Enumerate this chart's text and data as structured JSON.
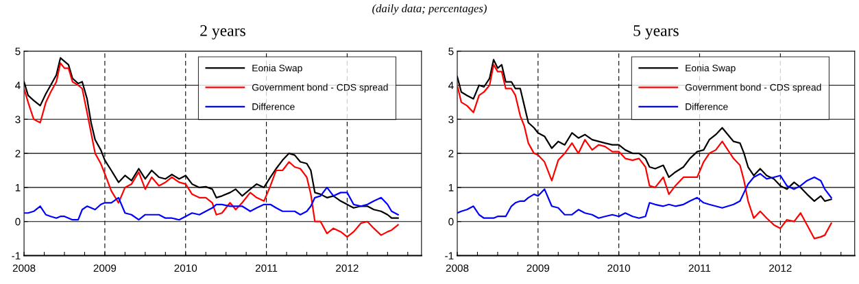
{
  "chart_data": [
    {
      "type": "line",
      "title": "2 years",
      "annotations": [
        "(daily data; percentages)"
      ],
      "x": [
        2008.0,
        2008.05,
        2008.12,
        2008.2,
        2008.27,
        2008.33,
        2008.4,
        2008.45,
        2008.5,
        2008.55,
        2008.6,
        2008.67,
        2008.72,
        2008.78,
        2008.83,
        2008.88,
        2008.95,
        2009.0,
        2009.08,
        2009.17,
        2009.25,
        2009.33,
        2009.42,
        2009.5,
        2009.58,
        2009.67,
        2009.75,
        2009.83,
        2009.92,
        2010.0,
        2010.08,
        2010.17,
        2010.25,
        2010.33,
        2010.38,
        2010.45,
        2010.55,
        2010.62,
        2010.7,
        2010.8,
        2010.88,
        2010.97,
        2011.05,
        2011.12,
        2011.2,
        2011.28,
        2011.35,
        2011.42,
        2011.5,
        2011.55,
        2011.6,
        2011.67,
        2011.75,
        2011.83,
        2011.92,
        2012.0,
        2012.08,
        2012.17,
        2012.25,
        2012.33,
        2012.42,
        2012.5,
        2012.55,
        2012.63
      ],
      "series": [
        {
          "name": "Eonia Swap",
          "color": "#000000",
          "values": [
            4.1,
            3.7,
            3.55,
            3.4,
            3.75,
            4.0,
            4.3,
            4.8,
            4.7,
            4.6,
            4.2,
            4.05,
            4.1,
            3.6,
            2.9,
            2.4,
            2.1,
            1.8,
            1.5,
            1.15,
            1.35,
            1.2,
            1.55,
            1.25,
            1.5,
            1.3,
            1.25,
            1.38,
            1.25,
            1.35,
            1.1,
            1.0,
            1.02,
            0.95,
            0.7,
            0.75,
            0.85,
            0.95,
            0.75,
            0.95,
            1.1,
            1.0,
            1.3,
            1.55,
            1.8,
            2.0,
            1.95,
            1.75,
            1.7,
            1.5,
            0.85,
            0.8,
            0.7,
            0.75,
            0.6,
            0.5,
            0.4,
            0.45,
            0.45,
            0.35,
            0.3,
            0.2,
            0.1,
            0.1
          ]
        },
        {
          "name": "Government bond - CDS spread",
          "color": "#ff0000",
          "values": [
            3.9,
            3.5,
            3.0,
            2.9,
            3.5,
            3.8,
            4.1,
            4.65,
            4.5,
            4.5,
            4.1,
            4.0,
            3.9,
            3.2,
            2.6,
            2.0,
            1.7,
            1.4,
            0.9,
            0.55,
            1.0,
            1.1,
            1.45,
            0.95,
            1.3,
            1.05,
            1.15,
            1.3,
            1.15,
            1.1,
            0.8,
            0.7,
            0.7,
            0.55,
            0.2,
            0.25,
            0.55,
            0.35,
            0.55,
            0.85,
            0.7,
            0.6,
            1.05,
            1.5,
            1.5,
            1.75,
            1.6,
            1.55,
            1.3,
            0.8,
            0.0,
            0.0,
            -0.35,
            -0.2,
            -0.3,
            -0.45,
            -0.3,
            -0.05,
            0.0,
            -0.2,
            -0.4,
            -0.3,
            -0.25,
            -0.1
          ]
        },
        {
          "name": "Difference",
          "color": "#0000ff",
          "values": [
            0.25,
            0.25,
            0.3,
            0.45,
            0.2,
            0.15,
            0.1,
            0.15,
            0.15,
            0.1,
            0.05,
            0.05,
            0.35,
            0.45,
            0.4,
            0.35,
            0.5,
            0.55,
            0.55,
            0.7,
            0.25,
            0.2,
            0.05,
            0.2,
            0.2,
            0.2,
            0.1,
            0.1,
            0.05,
            0.15,
            0.25,
            0.2,
            0.3,
            0.4,
            0.5,
            0.5,
            0.45,
            0.45,
            0.45,
            0.3,
            0.4,
            0.5,
            0.5,
            0.4,
            0.3,
            0.3,
            0.3,
            0.2,
            0.3,
            0.45,
            0.7,
            0.75,
            1.0,
            0.75,
            0.85,
            0.85,
            0.5,
            0.45,
            0.5,
            0.6,
            0.7,
            0.5,
            0.3,
            0.2
          ]
        }
      ],
      "xlim": [
        2008,
        2012.92
      ],
      "xticks": [
        2008,
        {
          "value": 2008.25,
          "label": null
        },
        {
          "value": 2008.5,
          "label": null
        },
        {
          "value": 2008.75,
          "label": null
        },
        2009,
        {
          "value": 2009.25,
          "label": null
        },
        {
          "value": 2009.5,
          "label": null
        },
        {
          "value": 2009.75,
          "label": null
        },
        2010,
        {
          "value": 2010.25,
          "label": null
        },
        {
          "value": 2010.5,
          "label": null
        },
        {
          "value": 2010.75,
          "label": null
        },
        2011,
        {
          "value": 2011.25,
          "label": null
        },
        {
          "value": 2011.5,
          "label": null
        },
        {
          "value": 2011.75,
          "label": null
        },
        2012,
        {
          "value": 2012.25,
          "label": null
        },
        {
          "value": 2012.5,
          "label": null
        },
        {
          "value": 2012.75,
          "label": null
        }
      ],
      "ylim": [
        -1,
        5
      ],
      "yticks": [
        -1,
        0,
        1,
        2,
        3,
        4,
        5
      ],
      "grid": "y",
      "legend": "top right",
      "line_style": "solid",
      "marker": "none",
      "ref_lines": [
        {
          "axis": "x",
          "value": 2009,
          "color": "#000000",
          "line_style": "dashed"
        },
        {
          "axis": "x",
          "value": 2010,
          "color": "#000000",
          "line_style": "dashed"
        },
        {
          "axis": "x",
          "value": 2011,
          "color": "#000000",
          "line_style": "dashed"
        },
        {
          "axis": "x",
          "value": 2012,
          "color": "#000000",
          "line_style": "dashed"
        }
      ]
    },
    {
      "type": "line",
      "title": "5 years",
      "x": [
        2008.0,
        2008.05,
        2008.12,
        2008.2,
        2008.27,
        2008.33,
        2008.4,
        2008.45,
        2008.5,
        2008.55,
        2008.6,
        2008.67,
        2008.72,
        2008.78,
        2008.83,
        2008.88,
        2008.95,
        2009.0,
        2009.08,
        2009.17,
        2009.25,
        2009.33,
        2009.42,
        2009.5,
        2009.58,
        2009.67,
        2009.75,
        2009.83,
        2009.92,
        2010.0,
        2010.08,
        2010.17,
        2010.25,
        2010.33,
        2010.38,
        2010.45,
        2010.55,
        2010.62,
        2010.7,
        2010.8,
        2010.88,
        2010.97,
        2011.05,
        2011.12,
        2011.2,
        2011.28,
        2011.35,
        2011.42,
        2011.5,
        2011.55,
        2011.6,
        2011.67,
        2011.75,
        2011.83,
        2011.92,
        2012.0,
        2012.08,
        2012.17,
        2012.25,
        2012.33,
        2012.42,
        2012.5,
        2012.55,
        2012.63
      ],
      "series": [
        {
          "name": "Eonia Swap",
          "color": "#000000",
          "values": [
            4.25,
            3.8,
            3.7,
            3.6,
            4.0,
            3.95,
            4.2,
            4.75,
            4.5,
            4.6,
            4.1,
            4.1,
            3.9,
            3.9,
            3.4,
            2.9,
            2.75,
            2.6,
            2.5,
            2.15,
            2.35,
            2.25,
            2.6,
            2.45,
            2.55,
            2.4,
            2.35,
            2.3,
            2.25,
            2.25,
            2.1,
            2.0,
            2.0,
            1.85,
            1.6,
            1.55,
            1.65,
            1.3,
            1.45,
            1.6,
            1.85,
            2.05,
            2.1,
            2.4,
            2.55,
            2.75,
            2.55,
            2.35,
            2.3,
            2.0,
            1.6,
            1.35,
            1.55,
            1.35,
            1.25,
            1.05,
            0.95,
            1.15,
            1.0,
            0.8,
            0.6,
            0.75,
            0.6,
            0.65
          ]
        },
        {
          "name": "Government bond - CDS spread",
          "color": "#ff0000",
          "values": [
            4.0,
            3.5,
            3.4,
            3.2,
            3.7,
            3.8,
            4.0,
            4.6,
            4.4,
            4.4,
            3.9,
            3.9,
            3.7,
            3.1,
            2.8,
            2.3,
            2.0,
            1.95,
            1.75,
            1.2,
            1.8,
            2.0,
            2.3,
            2.0,
            2.4,
            2.1,
            2.25,
            2.2,
            2.05,
            2.05,
            1.85,
            1.8,
            1.85,
            1.6,
            1.05,
            1.0,
            1.3,
            0.8,
            1.05,
            1.3,
            1.3,
            1.3,
            1.75,
            2.0,
            2.1,
            2.35,
            2.1,
            1.85,
            1.65,
            1.2,
            0.6,
            0.1,
            0.3,
            0.1,
            -0.1,
            -0.2,
            0.05,
            0.0,
            0.25,
            -0.1,
            -0.5,
            -0.45,
            -0.4,
            -0.05
          ]
        },
        {
          "name": "Difference",
          "color": "#0000ff",
          "values": [
            0.25,
            0.3,
            0.35,
            0.45,
            0.2,
            0.1,
            0.1,
            0.1,
            0.15,
            0.15,
            0.15,
            0.45,
            0.55,
            0.6,
            0.6,
            0.7,
            0.8,
            0.75,
            0.95,
            0.45,
            0.4,
            0.2,
            0.2,
            0.35,
            0.25,
            0.2,
            0.1,
            0.15,
            0.2,
            0.15,
            0.25,
            0.15,
            0.1,
            0.15,
            0.55,
            0.5,
            0.45,
            0.5,
            0.45,
            0.5,
            0.6,
            0.7,
            0.55,
            0.5,
            0.45,
            0.4,
            0.45,
            0.5,
            0.6,
            0.85,
            1.1,
            1.3,
            1.4,
            1.25,
            1.3,
            1.35,
            1.05,
            0.95,
            1.05,
            1.2,
            1.3,
            1.2,
            0.95,
            0.7
          ]
        }
      ],
      "xlim": [
        2008,
        2012.92
      ],
      "xticks": [
        2008,
        {
          "value": 2008.25,
          "label": null
        },
        {
          "value": 2008.5,
          "label": null
        },
        {
          "value": 2008.75,
          "label": null
        },
        2009,
        {
          "value": 2009.25,
          "label": null
        },
        {
          "value": 2009.5,
          "label": null
        },
        {
          "value": 2009.75,
          "label": null
        },
        2010,
        {
          "value": 2010.25,
          "label": null
        },
        {
          "value": 2010.5,
          "label": null
        },
        {
          "value": 2010.75,
          "label": null
        },
        2011,
        {
          "value": 2011.25,
          "label": null
        },
        {
          "value": 2011.5,
          "label": null
        },
        {
          "value": 2011.75,
          "label": null
        },
        2012,
        {
          "value": 2012.25,
          "label": null
        },
        {
          "value": 2012.5,
          "label": null
        },
        {
          "value": 2012.75,
          "label": null
        }
      ],
      "ylim": [
        -1,
        5
      ],
      "yticks": [
        -1,
        0,
        1,
        2,
        3,
        4,
        5
      ],
      "grid": "y",
      "legend": "top right",
      "line_style": "solid",
      "marker": "none",
      "ref_lines": [
        {
          "axis": "x",
          "value": 2009,
          "color": "#000000",
          "line_style": "dashed"
        },
        {
          "axis": "x",
          "value": 2010,
          "color": "#000000",
          "line_style": "dashed"
        },
        {
          "axis": "x",
          "value": 2011,
          "color": "#000000",
          "line_style": "dashed"
        },
        {
          "axis": "x",
          "value": 2012,
          "color": "#000000",
          "line_style": "dashed"
        }
      ]
    }
  ]
}
